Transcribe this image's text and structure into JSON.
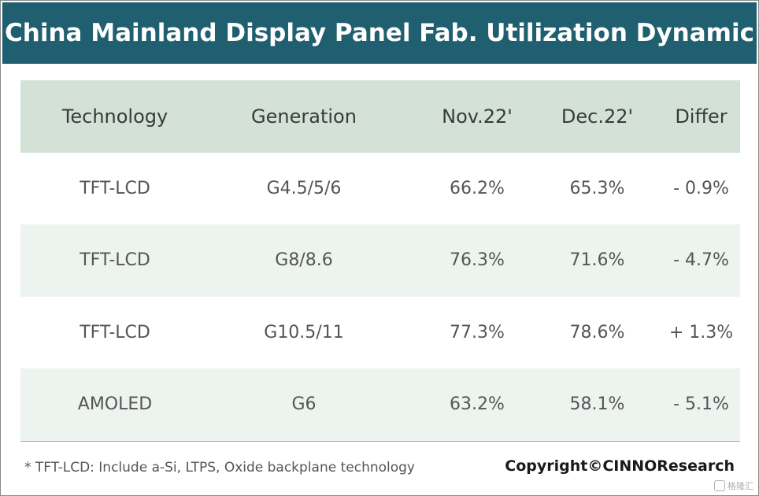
{
  "title": "China Mainland Display Panel Fab. Utilization Dynamic",
  "table": {
    "headers": [
      "Technology",
      "Generation",
      "Nov.22'",
      "Dec.22'",
      "Differ"
    ],
    "rows": [
      [
        "TFT-LCD",
        "G4.5/5/6",
        "66.2%",
        "65.3%",
        "- 0.9%"
      ],
      [
        "TFT-LCD",
        "G8/8.6",
        "76.3%",
        "71.6%",
        "- 4.7%"
      ],
      [
        "TFT-LCD",
        "G10.5/11",
        "77.3%",
        "78.6%",
        "+ 1.3%"
      ],
      [
        "AMOLED",
        "G6",
        "63.2%",
        "58.1%",
        "- 5.1%"
      ]
    ]
  },
  "footnote": "* TFT-LCD: Include a-Si, LTPS, Oxide backplane technology",
  "copyright": "Copyright©CINNOResearch",
  "watermark": "格隆汇",
  "colors": {
    "title_bar": "#1f5f70",
    "header_row": "#d3e1d6",
    "shaded_row": "#edf4ef"
  }
}
